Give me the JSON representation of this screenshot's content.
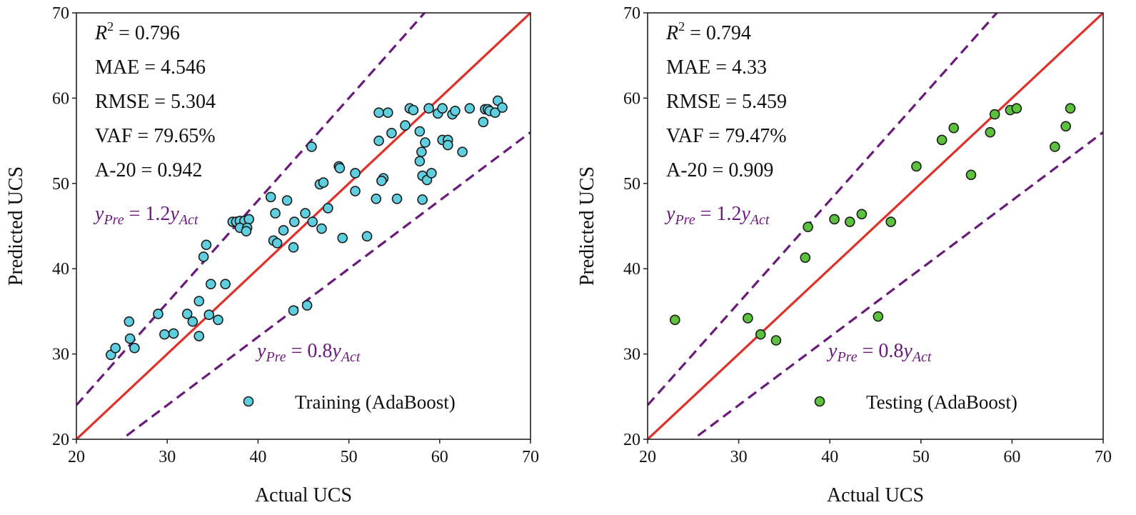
{
  "chart_data": [
    {
      "type": "scatter",
      "xlabel": "Actual UCS",
      "ylabel": "Predicted UCS",
      "xlim": [
        20,
        70
      ],
      "ylim": [
        20,
        70
      ],
      "xticks": [
        "20",
        "30",
        "40",
        "50",
        "60",
        "70"
      ],
      "yticks": [
        "20",
        "30",
        "40",
        "50",
        "60",
        "70"
      ],
      "grid": false,
      "legend_placement": "bottom-right",
      "marker_color": "#5fcfe0",
      "series": [
        {
          "name": "Training (AdaBoost)",
          "points": [
            [
              23.8,
              29.9
            ],
            [
              24.3,
              30.7
            ],
            [
              25.8,
              33.8
            ],
            [
              25.9,
              31.8
            ],
            [
              26.4,
              30.7
            ],
            [
              29.0,
              34.7
            ],
            [
              29.7,
              32.3
            ],
            [
              30.7,
              32.4
            ],
            [
              32.2,
              34.7
            ],
            [
              32.8,
              33.8
            ],
            [
              33.5,
              32.1
            ],
            [
              33.5,
              36.2
            ],
            [
              34.6,
              34.6
            ],
            [
              34.8,
              38.2
            ],
            [
              35.6,
              34.0
            ],
            [
              36.4,
              38.2
            ],
            [
              34.0,
              41.4
            ],
            [
              34.3,
              42.8
            ],
            [
              37.2,
              45.5
            ],
            [
              37.6,
              45.5
            ],
            [
              38.0,
              45.6
            ],
            [
              38.5,
              45.6
            ],
            [
              39.0,
              45.8
            ],
            [
              38.0,
              44.8
            ],
            [
              38.8,
              44.8
            ],
            [
              38.7,
              44.4
            ],
            [
              41.4,
              48.4
            ],
            [
              41.9,
              46.5
            ],
            [
              41.7,
              43.3
            ],
            [
              42.1,
              43.0
            ],
            [
              43.2,
              48.0
            ],
            [
              42.8,
              44.5
            ],
            [
              44.0,
              45.5
            ],
            [
              43.9,
              42.5
            ],
            [
              45.2,
              46.5
            ],
            [
              46.0,
              45.5
            ],
            [
              47.0,
              44.7
            ],
            [
              47.7,
              47.1
            ],
            [
              46.8,
              49.9
            ],
            [
              47.2,
              50.1
            ],
            [
              48.9,
              52.0
            ],
            [
              49.0,
              51.8
            ],
            [
              49.3,
              43.6
            ],
            [
              50.7,
              49.1
            ],
            [
              50.7,
              51.2
            ],
            [
              52.0,
              43.8
            ],
            [
              53.0,
              48.2
            ],
            [
              53.3,
              58.3
            ],
            [
              54.3,
              58.3
            ],
            [
              53.3,
              55.0
            ],
            [
              53.8,
              50.6
            ],
            [
              53.6,
              50.3
            ],
            [
              54.7,
              55.9
            ],
            [
              55.3,
              48.2
            ],
            [
              56.2,
              56.8
            ],
            [
              56.7,
              58.8
            ],
            [
              57.1,
              58.6
            ],
            [
              57.8,
              56.1
            ],
            [
              58.0,
              53.7
            ],
            [
              57.8,
              52.6
            ],
            [
              58.1,
              48.1
            ],
            [
              58.1,
              50.9
            ],
            [
              58.6,
              50.4
            ],
            [
              59.1,
              51.2
            ],
            [
              58.4,
              54.8
            ],
            [
              58.8,
              58.8
            ],
            [
              59.8,
              58.2
            ],
            [
              60.3,
              58.8
            ],
            [
              60.3,
              55.1
            ],
            [
              60.9,
              55.1
            ],
            [
              60.9,
              54.5
            ],
            [
              61.4,
              58.1
            ],
            [
              61.7,
              58.5
            ],
            [
              62.5,
              53.7
            ],
            [
              63.3,
              58.8
            ],
            [
              64.8,
              57.2
            ],
            [
              65.0,
              58.7
            ],
            [
              65.3,
              58.7
            ],
            [
              65.5,
              58.5
            ],
            [
              66.1,
              58.3
            ],
            [
              66.4,
              59.7
            ],
            [
              66.9,
              58.9
            ],
            [
              45.9,
              54.3
            ],
            [
              45.4,
              35.7
            ],
            [
              43.9,
              35.1
            ]
          ]
        }
      ],
      "lines": [
        {
          "label": "y = x",
          "slope": 1.0,
          "color": "#e0302a",
          "style": "solid"
        },
        {
          "label_parts": [
            "y",
            "Pre",
            " = 1.2",
            "y",
            "Act"
          ],
          "slope": 1.2,
          "color": "#6a1a7a",
          "style": "dashed"
        },
        {
          "label_parts": [
            "y",
            "Pre",
            " = 0.8",
            "y",
            "Act"
          ],
          "slope": 0.8,
          "color": "#6a1a7a",
          "style": "dashed"
        }
      ],
      "metrics": {
        "r2": "0.796",
        "mae": "MAE = 4.546",
        "rmse": "RMSE = 5.304",
        "vaf": "VAF = 79.65%",
        "a20": "A-20 = 0.942"
      }
    },
    {
      "type": "scatter",
      "xlabel": "Actual UCS",
      "ylabel": "Predicted UCS",
      "xlim": [
        20,
        70
      ],
      "ylim": [
        20,
        70
      ],
      "xticks": [
        "20",
        "30",
        "40",
        "50",
        "60",
        "70"
      ],
      "yticks": [
        "20",
        "30",
        "40",
        "50",
        "60",
        "70"
      ],
      "grid": false,
      "legend_placement": "bottom-right",
      "marker_color": "#5cc13c",
      "series": [
        {
          "name": "Testing (AdaBoost)",
          "points": [
            [
              23.0,
              34.0
            ],
            [
              31.0,
              34.2
            ],
            [
              32.4,
              32.3
            ],
            [
              34.1,
              31.6
            ],
            [
              37.3,
              41.3
            ],
            [
              37.6,
              44.9
            ],
            [
              40.5,
              45.8
            ],
            [
              42.2,
              45.5
            ],
            [
              43.5,
              46.4
            ],
            [
              46.7,
              45.5
            ],
            [
              45.3,
              34.4
            ],
            [
              49.5,
              52.0
            ],
            [
              52.3,
              55.1
            ],
            [
              53.6,
              56.5
            ],
            [
              55.5,
              51.0
            ],
            [
              57.6,
              56.0
            ],
            [
              58.1,
              58.1
            ],
            [
              59.8,
              58.6
            ],
            [
              60.5,
              58.8
            ],
            [
              64.7,
              54.3
            ],
            [
              65.9,
              56.7
            ],
            [
              66.4,
              58.8
            ]
          ]
        }
      ],
      "lines": [
        {
          "label": "y = x",
          "slope": 1.0,
          "color": "#e0302a",
          "style": "solid"
        },
        {
          "label_parts": [
            "y",
            "Pre",
            " = 1.2",
            "y",
            "Act"
          ],
          "slope": 1.2,
          "color": "#6a1a7a",
          "style": "dashed"
        },
        {
          "label_parts": [
            "y",
            "Pre",
            " = 0.8",
            "y",
            "Act"
          ],
          "slope": 0.8,
          "color": "#6a1a7a",
          "style": "dashed"
        }
      ],
      "metrics": {
        "r2": "0.794",
        "mae": "MAE = 4.33",
        "rmse": "RMSE = 5.459",
        "vaf": "VAF = 79.47%",
        "a20": "A-20 = 0.909"
      }
    }
  ]
}
